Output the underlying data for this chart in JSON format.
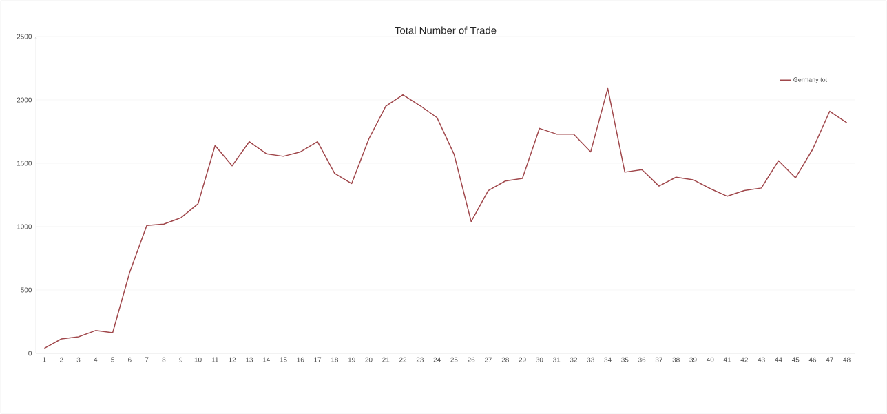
{
  "chart_data": {
    "type": "line",
    "title": "Total Number of Trade",
    "categories": [
      "1",
      "2",
      "3",
      "4",
      "5",
      "6",
      "7",
      "8",
      "9",
      "10",
      "11",
      "12",
      "13",
      "14",
      "15",
      "16",
      "17",
      "18",
      "19",
      "20",
      "21",
      "22",
      "23",
      "24",
      "25",
      "26",
      "27",
      "28",
      "29",
      "30",
      "31",
      "32",
      "33",
      "34",
      "35",
      "36",
      "37",
      "38",
      "39",
      "40",
      "41",
      "42",
      "43",
      "44",
      "45",
      "46",
      "47",
      "48"
    ],
    "series": [
      {
        "name": "Germany tot",
        "color": "#a0474b",
        "values": [
          40,
          114,
          130,
          180,
          163,
          640,
          1010,
          1020,
          1070,
          1180,
          1640,
          1480,
          1670,
          1575,
          1555,
          1590,
          1670,
          1420,
          1340,
          1690,
          1950,
          2040,
          1955,
          1860,
          1570,
          1040,
          1285,
          1360,
          1380,
          1775,
          1730,
          1730,
          1590,
          2090,
          1430,
          1450,
          1320,
          1390,
          1370,
          1300,
          1240,
          1285,
          1305,
          1520,
          1385,
          1610,
          1910,
          1820
        ]
      }
    ],
    "ylim": [
      0,
      2500
    ],
    "yticks": [
      0,
      500,
      1000,
      1500,
      2000,
      2500
    ],
    "grid": "y",
    "legend": "top right",
    "marker": "none",
    "line_style": "solid"
  }
}
